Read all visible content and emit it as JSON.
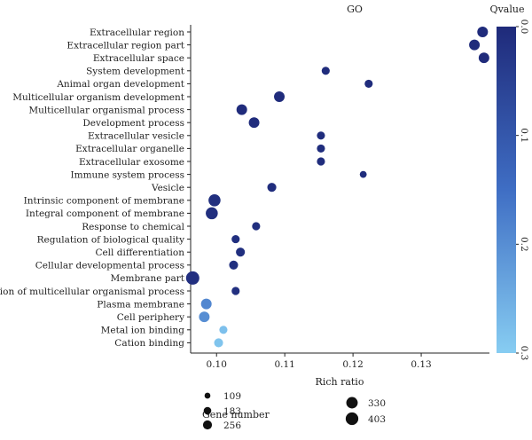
{
  "chart_data": {
    "type": "scatter",
    "title": "GO",
    "xlabel": "Rich ratio",
    "ylabel": "",
    "xlim": [
      0.0962,
      0.14
    ],
    "xticks": [
      "0.10",
      "0.11",
      "0.12",
      "0.13"
    ],
    "xtick_values": [
      0.1,
      0.11,
      0.12,
      0.13
    ],
    "grid": false,
    "categories": [
      "Extracellular region",
      "Extracellular region part",
      "Extracellular space",
      "System development",
      "Animal organ development",
      "Multicellular organism development",
      "Multicellular organismal process",
      "Development process",
      "Extracellular vesicle",
      "Extracellular organelle",
      "Extracellular  exosome",
      "Immune system process",
      "Vesicle",
      "Intrinsic component of membrane",
      "Integral component of membrane",
      "Response to chemical",
      "Regulation of biological quality",
      "Cell differentiation",
      "Cellular developmental process",
      "Membrane part",
      "Regulation of multicellular organismal process",
      "Plasma membrane",
      "Cell periphery",
      "Metal ion binding",
      "Cation binding"
    ],
    "points": [
      {
        "term": "Extracellular region",
        "rich_ratio": 0.139,
        "gene_number": 260,
        "qvalue": 0.002
      },
      {
        "term": "Extracellular region part",
        "rich_ratio": 0.1378,
        "gene_number": 256,
        "qvalue": 0.002
      },
      {
        "term": "Extracellular space",
        "rich_ratio": 0.1392,
        "gene_number": 256,
        "qvalue": 0.003
      },
      {
        "term": "System development",
        "rich_ratio": 0.116,
        "gene_number": 150,
        "qvalue": 0.004
      },
      {
        "term": "Animal organ development",
        "rich_ratio": 0.1223,
        "gene_number": 150,
        "qvalue": 0.004
      },
      {
        "term": "Multicellular organism development",
        "rich_ratio": 0.1092,
        "gene_number": 256,
        "qvalue": 0.004
      },
      {
        "term": "Multicellular organismal process",
        "rich_ratio": 0.1037,
        "gene_number": 256,
        "qvalue": 0.005
      },
      {
        "term": "Development process",
        "rich_ratio": 0.1055,
        "gene_number": 256,
        "qvalue": 0.005
      },
      {
        "term": "Extracellular vesicle",
        "rich_ratio": 0.1153,
        "gene_number": 150,
        "qvalue": 0.006
      },
      {
        "term": "Extracellular organelle",
        "rich_ratio": 0.1153,
        "gene_number": 150,
        "qvalue": 0.006
      },
      {
        "term": "Extracellular  exosome",
        "rich_ratio": 0.1153,
        "gene_number": 150,
        "qvalue": 0.006
      },
      {
        "term": "Immune system process",
        "rich_ratio": 0.1215,
        "gene_number": 109,
        "qvalue": 0.007
      },
      {
        "term": "Vesicle",
        "rich_ratio": 0.1081,
        "gene_number": 183,
        "qvalue": 0.007
      },
      {
        "term": "Intrinsic component of membrane",
        "rich_ratio": 0.0997,
        "gene_number": 330,
        "qvalue": 0.01
      },
      {
        "term": "Integral component of membrane",
        "rich_ratio": 0.0993,
        "gene_number": 330,
        "qvalue": 0.01
      },
      {
        "term": "Response to chemical",
        "rich_ratio": 0.1058,
        "gene_number": 150,
        "qvalue": 0.01
      },
      {
        "term": "Regulation of biological quality",
        "rich_ratio": 0.1028,
        "gene_number": 150,
        "qvalue": 0.01
      },
      {
        "term": "Cell differentiation",
        "rich_ratio": 0.1035,
        "gene_number": 183,
        "qvalue": 0.01
      },
      {
        "term": "Cellular developmental process",
        "rich_ratio": 0.1025,
        "gene_number": 183,
        "qvalue": 0.01
      },
      {
        "term": "Membrane part",
        "rich_ratio": 0.0965,
        "gene_number": 403,
        "qvalue": 0.012
      },
      {
        "term": "Regulation of multicellular organismal process",
        "rich_ratio": 0.1028,
        "gene_number": 150,
        "qvalue": 0.013
      },
      {
        "term": "Plasma membrane",
        "rich_ratio": 0.0985,
        "gene_number": 256,
        "qvalue": 0.19
      },
      {
        "term": "Cell periphery",
        "rich_ratio": 0.0982,
        "gene_number": 256,
        "qvalue": 0.2
      },
      {
        "term": "Metal ion binding",
        "rich_ratio": 0.101,
        "gene_number": 150,
        "qvalue": 0.28
      },
      {
        "term": "Cation binding",
        "rich_ratio": 0.1003,
        "gene_number": 183,
        "qvalue": 0.285
      }
    ],
    "color_scale": {
      "title": "Qvalue",
      "range": [
        0.0,
        0.3
      ],
      "ticks": [
        "0.0",
        "0.1",
        "0.2",
        "0.3"
      ],
      "tick_values": [
        0.0,
        0.1,
        0.2,
        0.3
      ],
      "color_low": "#1f2a7a",
      "color_high": "#87cdf2"
    },
    "size_legend": {
      "title": "Gene number",
      "entries": [
        {
          "label": "109",
          "value": 109
        },
        {
          "label": "183",
          "value": 183
        },
        {
          "label": "256",
          "value": 256
        },
        {
          "label": "330",
          "value": 330
        },
        {
          "label": "403",
          "value": 403
        }
      ]
    }
  }
}
